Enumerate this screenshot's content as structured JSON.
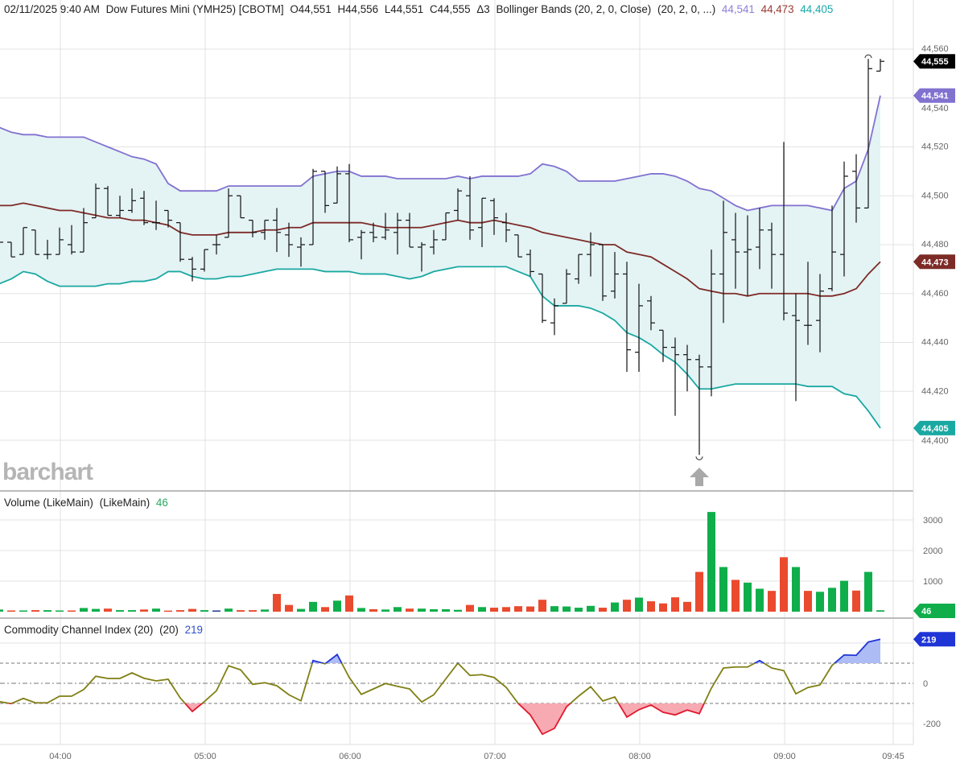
{
  "header": {
    "datetime": "02/11/2025 9:40 AM",
    "symbol": "Dow Futures Mini (YMH25) [CBOTM]",
    "open": "O44,551",
    "high": "H44,556",
    "low": "L44,551",
    "close": "C44,555",
    "change": "Δ3",
    "study": "Bollinger Bands (20, 2, 0, Close)",
    "study_params": "(20, 2, 0, ...)",
    "upper_value": "44,541",
    "middle_value": "44,473",
    "lower_value": "44,405"
  },
  "watermark": "barchart",
  "volume_pane": {
    "title": "Volume (LikeMain)",
    "params": "(LikeMain)",
    "value": "46"
  },
  "cci_pane": {
    "title": "Commodity Channel Index (20)",
    "params": "(20)",
    "value": "219"
  },
  "colors": {
    "bb_upper": "#8172d0",
    "bb_middle": "#7d2b27",
    "bb_lower": "#1aa8a2",
    "bb_fill": "#e4f3f4",
    "bar": "#111111",
    "vol_up": "#0fae4b",
    "vol_down": "#ea4a2e",
    "vol_unch": "#1f3a8a",
    "cci_line": "#7f7f14",
    "cci_over": "#1f35d6",
    "cci_over_fill": "#aebcf6",
    "cci_under": "#e0192e",
    "cci_under_fill": "#f7aab2",
    "last_price_badge": "#000000"
  },
  "badges": {
    "last": "44,555",
    "upper": "44,541",
    "middle": "44,473",
    "lower": "44,405",
    "volume": "46",
    "cci": "219"
  },
  "chart_data": [
    {
      "type": "ohlc",
      "start_time": "03:35",
      "interval_minutes": 5,
      "x_ticks": [
        "04:00",
        "05:00",
        "06:00",
        "07:00",
        "08:00",
        "09:00",
        "09:45"
      ],
      "y_ticks": [
        "44,560",
        "44,540",
        "44,520",
        "44,500",
        "44,480",
        "44,460",
        "44,440",
        "44,420",
        "44,400"
      ],
      "ylim": [
        44400,
        44560
      ],
      "grid": true,
      "open": [
        44481,
        44481,
        44476,
        44486,
        44476,
        44476,
        44480,
        44477,
        44491,
        44503,
        44492,
        44494,
        44499,
        44489,
        44494,
        44489,
        44474,
        44470,
        44480,
        44483,
        44500,
        44490,
        44485,
        44490,
        44484,
        44479,
        44480,
        44510,
        44497,
        44509,
        44483,
        44485,
        44483,
        44485,
        44490,
        44479,
        44479,
        44482,
        44494,
        44500,
        44487,
        44498,
        44489,
        44484,
        44476,
        44468,
        44448,
        44456,
        44466,
        44476,
        44480,
        44461,
        44468,
        44436,
        44457,
        44445,
        44438,
        44435,
        44433,
        44430,
        44468,
        44482,
        44477,
        44479,
        44486,
        44476,
        44451,
        44447,
        44449,
        44462,
        44476,
        44510,
        44495,
        44551
      ],
      "high": [
        44482,
        44481,
        44487,
        44486,
        44482,
        44487,
        44488,
        44495,
        44505,
        44504,
        44500,
        44503,
        44502,
        44498,
        44494,
        44489,
        44475,
        44478,
        44484,
        44503,
        44500,
        44490,
        44490,
        44495,
        44489,
        44483,
        44511,
        44510,
        44512,
        44513,
        44486,
        44489,
        44493,
        44493,
        44493,
        44481,
        44486,
        44493,
        44503,
        44508,
        44499,
        44499,
        44493,
        44484,
        44478,
        44468,
        44458,
        44470,
        44476,
        44485,
        44480,
        44477,
        44473,
        44464,
        44459,
        44445,
        44442,
        44439,
        44435,
        44478,
        44498,
        44493,
        44492,
        44495,
        44489,
        44522,
        44460,
        44473,
        44468,
        44496,
        44514,
        44517,
        44556,
        44556
      ],
      "low": [
        44479,
        44475,
        44476,
        44476,
        44474,
        44476,
        44476,
        44477,
        44491,
        44492,
        44491,
        44493,
        44488,
        44486,
        44487,
        44473,
        44465,
        44469,
        44476,
        44483,
        44491,
        44483,
        44482,
        44477,
        44475,
        44471,
        44480,
        44493,
        44497,
        44481,
        44474,
        44481,
        44482,
        44476,
        44479,
        44469,
        44476,
        44482,
        44490,
        44482,
        44479,
        44484,
        44481,
        44475,
        44467,
        44448,
        44443,
        44456,
        44464,
        44467,
        44457,
        44458,
        44428,
        44428,
        44445,
        44432,
        44410,
        44420,
        44394,
        44418,
        44448,
        44462,
        44459,
        44470,
        44462,
        44449,
        44416,
        44439,
        44436,
        44461,
        44467,
        44489,
        44495,
        44551
      ],
      "close": [
        44481,
        44475,
        44487,
        44476,
        44476,
        44482,
        44477,
        44489,
        44503,
        44492,
        44494,
        44498,
        44489,
        44489,
        44490,
        44474,
        44470,
        44478,
        44480,
        44500,
        44491,
        44485,
        44490,
        44485,
        44480,
        44480,
        44510,
        44496,
        44509,
        44482,
        44485,
        44483,
        44486,
        44490,
        44479,
        44480,
        44482,
        44493,
        44502,
        44486,
        44499,
        44491,
        44486,
        44475,
        44469,
        44449,
        44455,
        44468,
        44476,
        44480,
        44459,
        44468,
        44437,
        44455,
        44448,
        44438,
        44435,
        44433,
        44430,
        44468,
        44485,
        44477,
        44478,
        44486,
        44476,
        44452,
        44449,
        44447,
        44461,
        44477,
        44508,
        44495,
        44552,
        44555
      ],
      "bb_upper": [
        44528,
        44526,
        44525,
        44525,
        44524,
        44524,
        44524,
        44524,
        44522,
        44520,
        44518,
        44516,
        44515,
        44513,
        44505,
        44502,
        44502,
        44502,
        44502,
        44504,
        44504,
        44504,
        44504,
        44504,
        44504,
        44504,
        44508,
        44509,
        44510,
        44510,
        44508,
        44508,
        44508,
        44507,
        44507,
        44507,
        44507,
        44507,
        44508,
        44507,
        44508,
        44508,
        44508,
        44508,
        44509,
        44513,
        44512,
        44510,
        44506,
        44506,
        44506,
        44506,
        44507,
        44508,
        44509,
        44509,
        44508,
        44506,
        44503,
        44502,
        44499,
        44496,
        44494,
        44495,
        44496,
        44496,
        44496,
        44496,
        44495,
        44494,
        44503,
        44506,
        44519,
        44541
      ],
      "bb_middle": [
        44496,
        44496,
        44497,
        44496,
        44495,
        44494,
        44494,
        44493,
        44492,
        44491,
        44491,
        44490,
        44490,
        44489,
        44488,
        44485,
        44484,
        44484,
        44484,
        44485,
        44485,
        44485,
        44486,
        44486,
        44487,
        44487,
        44489,
        44489,
        44489,
        44489,
        44489,
        44488,
        44487,
        44487,
        44487,
        44487,
        44488,
        44489,
        44490,
        44489,
        44489,
        44490,
        44489,
        44488,
        44487,
        44485,
        44484,
        44483,
        44482,
        44481,
        44480,
        44480,
        44477,
        44476,
        44475,
        44472,
        44469,
        44466,
        44462,
        44461,
        44460,
        44460,
        44459,
        44460,
        44460,
        44460,
        44460,
        44460,
        44459,
        44459,
        44460,
        44462,
        44468,
        44473
      ],
      "bb_lower": [
        44464,
        44466,
        44469,
        44468,
        44465,
        44463,
        44463,
        44463,
        44463,
        44464,
        44464,
        44465,
        44465,
        44466,
        44469,
        44469,
        44467,
        44466,
        44466,
        44467,
        44467,
        44468,
        44469,
        44470,
        44470,
        44470,
        44470,
        44469,
        44469,
        44469,
        44468,
        44468,
        44468,
        44467,
        44466,
        44467,
        44469,
        44470,
        44471,
        44471,
        44471,
        44471,
        44471,
        44469,
        44467,
        44459,
        44455,
        44455,
        44455,
        44454,
        44452,
        44449,
        44444,
        44442,
        44439,
        44435,
        44432,
        44427,
        44421,
        44421,
        44422,
        44423,
        44423,
        44423,
        44423,
        44423,
        44423,
        44422,
        44422,
        44422,
        44419,
        44418,
        44412,
        44405
      ]
    },
    {
      "type": "bar",
      "y_ticks": [
        "3000",
        "2000",
        "1000"
      ],
      "ylim": [
        0,
        3400
      ],
      "values": [
        70,
        40,
        40,
        50,
        50,
        40,
        40,
        120,
        90,
        100,
        50,
        50,
        70,
        100,
        35,
        50,
        90,
        50,
        40,
        100,
        50,
        50,
        70,
        580,
        220,
        90,
        320,
        150,
        360,
        530,
        120,
        80,
        70,
        150,
        100,
        100,
        80,
        80,
        60,
        220,
        150,
        130,
        150,
        180,
        170,
        390,
        180,
        170,
        130,
        190,
        130,
        300,
        390,
        460,
        340,
        270,
        470,
        320,
        1300,
        3260,
        1460,
        1040,
        950,
        750,
        680,
        1780,
        1460,
        680,
        650,
        780,
        1010,
        690,
        1300,
        46
      ],
      "direction": [
        "up",
        "down",
        "up",
        "down",
        "up",
        "up",
        "down",
        "up",
        "up",
        "down",
        "up",
        "up",
        "down",
        "up",
        "down",
        "down",
        "down",
        "up",
        "unch",
        "up",
        "down",
        "down",
        "up",
        "down",
        "down",
        "up",
        "up",
        "down",
        "up",
        "down",
        "up",
        "down",
        "up",
        "up",
        "down",
        "up",
        "up",
        "up",
        "up",
        "down",
        "up",
        "down",
        "down",
        "down",
        "down",
        "down",
        "up",
        "up",
        "up",
        "up",
        "down",
        "up",
        "down",
        "up",
        "down",
        "down",
        "down",
        "down",
        "down",
        "up",
        "up",
        "down",
        "up",
        "up",
        "down",
        "down",
        "up",
        "down",
        "up",
        "up",
        "up",
        "down",
        "up",
        "up"
      ]
    },
    {
      "type": "line",
      "y_ticks": [
        "0",
        "-200"
      ],
      "ylim": [
        -300,
        280
      ],
      "levels": [
        100,
        0,
        -100
      ],
      "values": [
        -91,
        -101,
        -75,
        -97,
        -97,
        -64,
        -64,
        -31,
        35,
        24,
        24,
        52,
        25,
        12,
        20,
        -73,
        -140,
        -91,
        -37,
        87,
        67,
        -5,
        3,
        -12,
        -57,
        -87,
        113,
        97,
        143,
        29,
        -55,
        -28,
        -1,
        -15,
        -28,
        -93,
        -57,
        22,
        100,
        39,
        43,
        29,
        -20,
        -100,
        -157,
        -253,
        -224,
        -117,
        -64,
        -17,
        -88,
        -68,
        -168,
        -131,
        -108,
        -144,
        -157,
        -133,
        -151,
        -24,
        76,
        81,
        81,
        113,
        76,
        63,
        -52,
        -21,
        -8,
        89,
        141,
        139,
        205,
        219
      ]
    }
  ]
}
